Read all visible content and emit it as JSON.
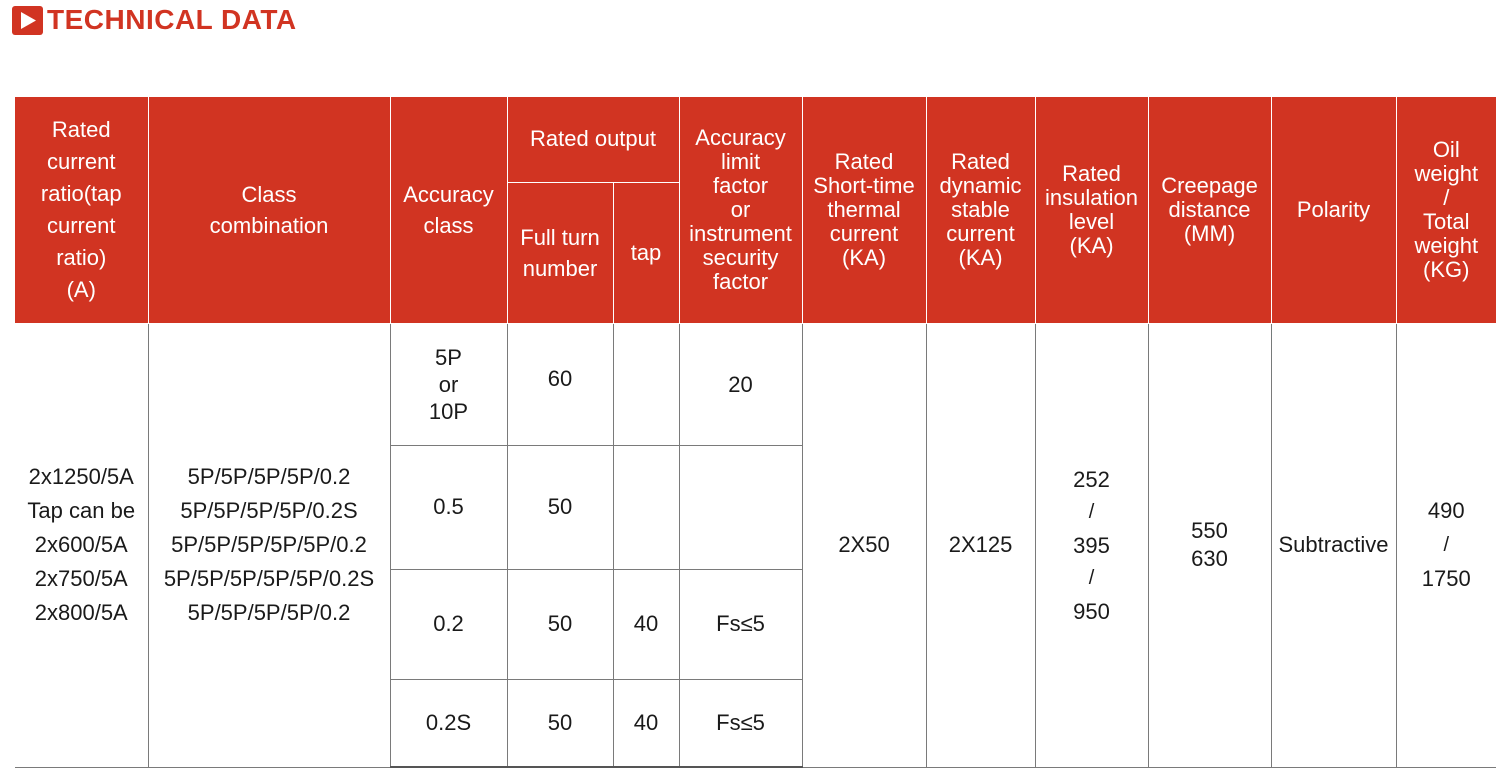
{
  "title": "TECHNICAL DATA",
  "colors": {
    "accent": "#d13422",
    "header_text": "#ffffff",
    "body_text": "#1a1a1a",
    "grid_line": "#7a7a7a"
  },
  "header": {
    "rated_current_ratio": [
      "Rated",
      "current",
      "ratio(tap",
      "current",
      "ratio)",
      "(A)"
    ],
    "class_combination": [
      "Class",
      "combination"
    ],
    "accuracy_class": [
      "Accuracy",
      "class"
    ],
    "rated_output": "Rated output",
    "full_turn_number": [
      "Full turn",
      "number"
    ],
    "tap": "tap",
    "accuracy_limit_factor": [
      "Accuracy",
      "limit",
      "factor",
      "or",
      "instrument",
      "security",
      "factor"
    ],
    "short_time_thermal_current": [
      "Rated",
      "Short-time",
      "thermal",
      "current",
      "(KA)"
    ],
    "dynamic_stable_current": [
      "Rated",
      "dynamic",
      "stable",
      "current",
      "(KA)"
    ],
    "insulation_level": [
      "Rated",
      "insulation",
      "level",
      "(KA)"
    ],
    "creepage_distance": [
      "Creepage",
      "distance",
      "(MM)"
    ],
    "polarity": "Polarity",
    "oil_weight": [
      "Oil",
      "weight",
      "/",
      "Total",
      "weight",
      "(KG)"
    ]
  },
  "body": {
    "rated_current_ratio": [
      "2x1250/5A",
      "Tap can be",
      "2x600/5A",
      "2x750/5A",
      "2x800/5A"
    ],
    "class_combination": [
      "5P/5P/5P/5P/0.2",
      "5P/5P/5P/5P/0.2S",
      "5P/5P/5P/5P/5P/0.2",
      "5P/5P/5P/5P/5P/0.2S",
      "5P/5P/5P/5P/0.2"
    ],
    "rows": [
      {
        "accuracy_class": [
          "5P",
          "or",
          "10P"
        ],
        "full_turn": "60",
        "tap": "",
        "factor": "20"
      },
      {
        "accuracy_class": [
          "0.5"
        ],
        "full_turn": "50",
        "tap": "",
        "factor": ""
      },
      {
        "accuracy_class": [
          "0.2"
        ],
        "full_turn": "50",
        "tap": "40",
        "factor": "Fs≤5"
      },
      {
        "accuracy_class": [
          "0.2S"
        ],
        "full_turn": "50",
        "tap": "40",
        "factor": "Fs≤5"
      }
    ],
    "short_time_thermal_current": "2X50",
    "dynamic_stable_current": "2X125",
    "insulation_level": [
      "252",
      "/",
      "395",
      "/",
      "950"
    ],
    "creepage_distance": [
      "550",
      "630"
    ],
    "polarity": "Subtractive",
    "oil_weight": [
      "490",
      "/",
      "1750"
    ]
  }
}
